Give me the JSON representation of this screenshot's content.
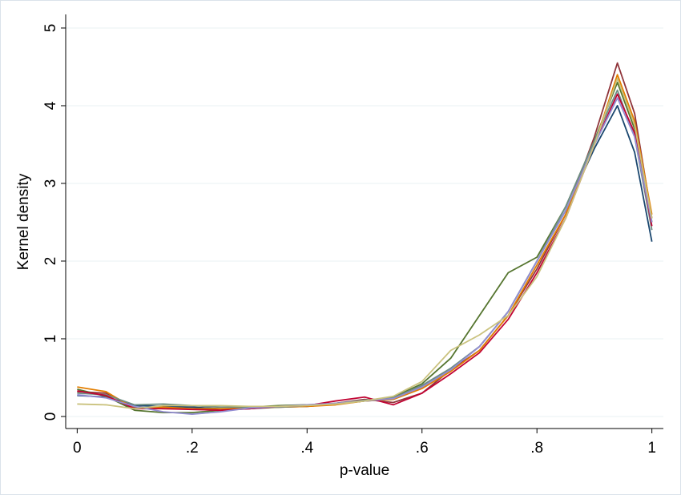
{
  "chart_data": {
    "type": "line",
    "xlabel": "p-value",
    "ylabel": "Kernel density",
    "x": [
      0,
      0.05,
      0.1,
      0.15,
      0.2,
      0.25,
      0.3,
      0.35,
      0.4,
      0.45,
      0.5,
      0.55,
      0.6,
      0.65,
      0.7,
      0.75,
      0.8,
      0.85,
      0.9,
      0.94,
      0.97,
      1
    ],
    "series": [
      {
        "color": "#1a476f",
        "values": [
          0.27,
          0.25,
          0.14,
          0.13,
          0.12,
          0.1,
          0.1,
          0.12,
          0.13,
          0.16,
          0.2,
          0.22,
          0.38,
          0.62,
          0.9,
          1.35,
          2.0,
          2.65,
          3.45,
          4.0,
          3.4,
          2.25
        ]
      },
      {
        "color": "#90353b",
        "values": [
          0.32,
          0.3,
          0.12,
          0.1,
          0.1,
          0.08,
          0.1,
          0.13,
          0.14,
          0.17,
          0.22,
          0.18,
          0.3,
          0.6,
          0.85,
          1.3,
          1.9,
          2.6,
          3.6,
          4.55,
          3.9,
          2.55
        ]
      },
      {
        "color": "#55752f",
        "values": [
          0.35,
          0.26,
          0.08,
          0.05,
          0.05,
          0.08,
          0.12,
          0.14,
          0.15,
          0.16,
          0.2,
          0.25,
          0.42,
          0.75,
          1.3,
          1.85,
          2.05,
          2.7,
          3.55,
          4.3,
          3.7,
          2.5
        ]
      },
      {
        "color": "#e37e00",
        "values": [
          0.38,
          0.32,
          0.1,
          0.12,
          0.1,
          0.1,
          0.11,
          0.12,
          0.13,
          0.15,
          0.2,
          0.22,
          0.36,
          0.58,
          0.85,
          1.3,
          1.95,
          2.6,
          3.5,
          4.4,
          3.8,
          2.6
        ]
      },
      {
        "color": "#6e8e84",
        "values": [
          0.3,
          0.28,
          0.15,
          0.16,
          0.14,
          0.12,
          0.12,
          0.12,
          0.14,
          0.17,
          0.21,
          0.24,
          0.4,
          0.62,
          0.9,
          1.35,
          2.0,
          2.7,
          3.55,
          4.2,
          3.6,
          2.4
        ]
      },
      {
        "color": "#c10534",
        "values": [
          0.33,
          0.27,
          0.1,
          0.1,
          0.09,
          0.08,
          0.1,
          0.13,
          0.14,
          0.2,
          0.25,
          0.15,
          0.3,
          0.55,
          0.82,
          1.25,
          1.85,
          2.55,
          3.5,
          4.15,
          3.65,
          2.45
        ]
      },
      {
        "color": "#938dd2",
        "values": [
          0.28,
          0.24,
          0.13,
          0.06,
          0.03,
          0.06,
          0.11,
          0.13,
          0.15,
          0.17,
          0.2,
          0.23,
          0.38,
          0.6,
          0.9,
          1.35,
          2.0,
          2.65,
          3.5,
          4.1,
          3.6,
          2.5
        ]
      },
      {
        "color": "#cac27e",
        "values": [
          0.16,
          0.15,
          0.1,
          0.14,
          0.14,
          0.14,
          0.13,
          0.13,
          0.14,
          0.16,
          0.2,
          0.26,
          0.45,
          0.85,
          1.05,
          1.3,
          1.8,
          2.55,
          3.5,
          4.35,
          3.75,
          2.55
        ]
      }
    ],
    "xlim": [
      -0.02,
      1.02
    ],
    "ylim": [
      -0.155,
      5.175
    ],
    "xticks": [
      0,
      {
        "value": 0.2,
        "label": ".2"
      },
      {
        "value": 0.4,
        "label": ".4"
      },
      {
        "value": 0.6,
        "label": ".6"
      },
      {
        "value": 0.8,
        "label": ".8"
      },
      1
    ],
    "yticks": [
      0,
      1,
      2,
      3,
      4,
      5
    ],
    "grid": true
  }
}
